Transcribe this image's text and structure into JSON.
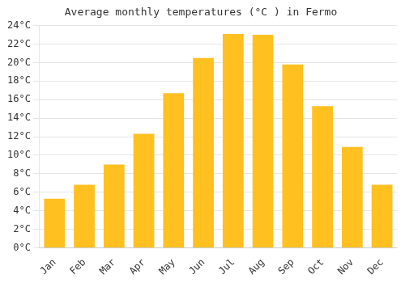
{
  "chart_data": {
    "type": "bar",
    "title": "Average monthly temperatures (°C ) in Fermo",
    "categories": [
      "Jan",
      "Feb",
      "Mar",
      "Apr",
      "May",
      "Jun",
      "Jul",
      "Aug",
      "Sep",
      "Oct",
      "Nov",
      "Dec"
    ],
    "values": [
      5.3,
      6.8,
      9.0,
      12.3,
      16.7,
      20.5,
      23.1,
      23.0,
      19.8,
      15.3,
      10.9,
      6.8
    ],
    "color": "#FFC020",
    "ylim": [
      0,
      24
    ],
    "yticks": [
      {
        "value": 0,
        "label": "0°C"
      },
      {
        "value": 2,
        "label": "2°C"
      },
      {
        "value": 4,
        "label": "4°C"
      },
      {
        "value": 6,
        "label": "6°C"
      },
      {
        "value": 8,
        "label": "8°C"
      },
      {
        "value": 10,
        "label": "10°C"
      },
      {
        "value": 12,
        "label": "12°C"
      },
      {
        "value": 14,
        "label": "14°C"
      },
      {
        "value": 16,
        "label": "16°C"
      },
      {
        "value": 18,
        "label": "18°C"
      },
      {
        "value": 20,
        "label": "20°C"
      },
      {
        "value": 22,
        "label": "22°C"
      },
      {
        "value": 24,
        "label": "24°C"
      }
    ],
    "grid": true
  }
}
